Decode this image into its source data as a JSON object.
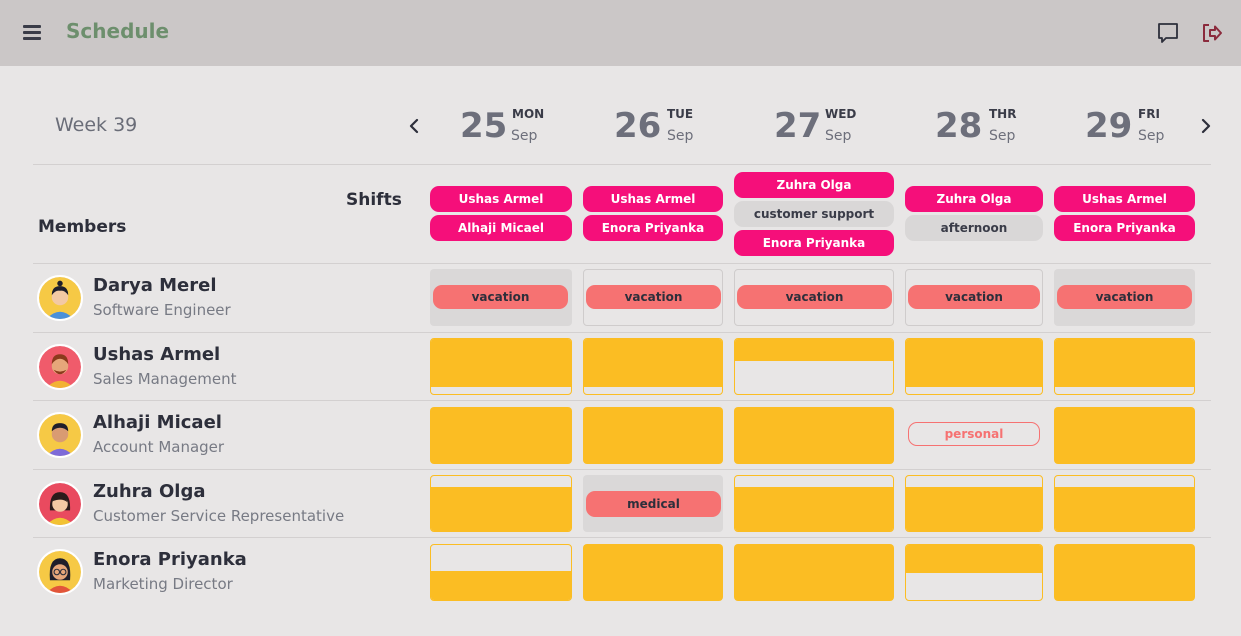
{
  "app": {
    "title": "Schedule"
  },
  "icons": {
    "menu": "menu-icon",
    "chat": "chat-icon",
    "logout": "logout-icon",
    "prev": "chevron-left-icon",
    "next": "chevron-right-icon"
  },
  "colors": {
    "topbar": "#cbc7c7",
    "title": "#6d8f6d",
    "shift_pink": "#f50f7a",
    "shift_gray": "#d9d7d7",
    "assignment": "#fbbd23",
    "absence": "#f67272",
    "logout": "#8b2a3c"
  },
  "week": {
    "label": "Week 39"
  },
  "days": [
    {
      "num": "25",
      "name": "MON",
      "month": "Sep"
    },
    {
      "num": "26",
      "name": "TUE",
      "month": "Sep"
    },
    {
      "num": "27",
      "name": "WED",
      "month": "Sep"
    },
    {
      "num": "28",
      "name": "THR",
      "month": "Sep"
    },
    {
      "num": "29",
      "name": "FRI",
      "month": "Sep"
    }
  ],
  "labels": {
    "shifts": "Shifts",
    "members": "Members"
  },
  "shifts": [
    [
      {
        "label": "Ushas Armel",
        "style": "pink"
      },
      {
        "label": "Alhaji Micael",
        "style": "pink"
      }
    ],
    [
      {
        "label": "Ushas Armel",
        "style": "pink"
      },
      {
        "label": "Enora Priyanka",
        "style": "pink"
      }
    ],
    [
      {
        "label": "Zuhra Olga",
        "style": "pink"
      },
      {
        "label": "customer support",
        "style": "gray"
      },
      {
        "label": "Enora Priyanka",
        "style": "pink"
      }
    ],
    [
      {
        "label": "Zuhra Olga",
        "style": "pink"
      },
      {
        "label": "afternoon",
        "style": "gray"
      }
    ],
    [
      {
        "label": "Ushas Armel",
        "style": "pink"
      },
      {
        "label": "Enora Priyanka",
        "style": "pink"
      }
    ]
  ],
  "members": [
    {
      "name": "Darya Merel",
      "role": "Software Engineer",
      "avatar_bg": "#f6c945",
      "hair": "#1f1f2b",
      "skin": "#f3c9a4",
      "shirt": "#4a90d9"
    },
    {
      "name": "Ushas Armel",
      "role": "Sales Management",
      "avatar_bg": "#f05b6b",
      "hair": "#8a3a1c",
      "skin": "#e6a77a",
      "shirt": "#f2b233"
    },
    {
      "name": "Alhaji Micael",
      "role": "Account Manager",
      "avatar_bg": "#f6c945",
      "hair": "#1f1f2b",
      "skin": "#d99b72",
      "shirt": "#7d6ad8"
    },
    {
      "name": "Zuhra Olga",
      "role": "Customer Service Representative",
      "avatar_bg": "#e94a5f",
      "hair": "#2b1b1b",
      "skin": "#f3c9a4",
      "shirt": "#f2c233"
    },
    {
      "name": "Enora Priyanka",
      "role": "Marketing Director",
      "avatar_bg": "#f6c945",
      "hair": "#1f1f2b",
      "skin": "#e6a77a",
      "shirt": "#e2553a"
    }
  ],
  "absences": {
    "vacation": "vacation",
    "personal": "personal",
    "medical": "medical"
  }
}
